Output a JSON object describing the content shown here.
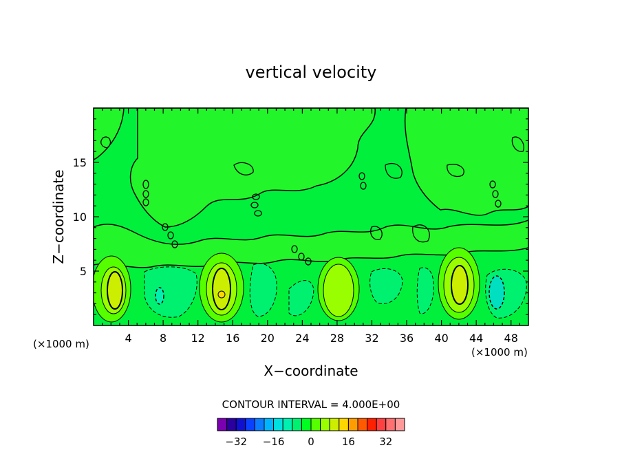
{
  "chart_data": {
    "type": "heatmap",
    "title": "vertical velocity",
    "xlabel": "X−coordinate",
    "ylabel": "Z−coordinate",
    "x_unit": "(×1000 m)",
    "z_unit": "(×1000 m)",
    "xlim": [
      0,
      50
    ],
    "ylim": [
      0,
      20
    ],
    "x_ticks": [
      4,
      8,
      12,
      16,
      20,
      24,
      28,
      32,
      36,
      40,
      44,
      48
    ],
    "y_ticks": [
      5,
      10,
      15
    ],
    "x_tick_labels": [
      "4",
      "8",
      "12",
      "16",
      "20",
      "24",
      "28",
      "32",
      "36",
      "40",
      "44",
      "48"
    ],
    "y_tick_labels": [
      "5",
      "10",
      "15"
    ],
    "contour_interval_text": "CONTOUR INTERVAL = 4.000E+00",
    "contour_interval": 4,
    "colorbar": {
      "colors": [
        "#7a00b0",
        "#2a00a0",
        "#1010d0",
        "#0a40ff",
        "#0a7cff",
        "#00b4ff",
        "#00e0e0",
        "#00f0b0",
        "#00f070",
        "#00ff20",
        "#55ff00",
        "#99ff00",
        "#ccee00",
        "#ffd700",
        "#ff9d00",
        "#ff5a00",
        "#ff2000",
        "#ff4040",
        "#ff7070",
        "#ff9a9a"
      ],
      "tick_values": [
        -32,
        -16,
        0,
        16,
        32
      ],
      "tick_labels": [
        "−32",
        "−16",
        "0",
        "16",
        "32"
      ],
      "min": -40,
      "max": 40
    },
    "cells": [
      {
        "x": 3,
        "z": 3.5,
        "w": 3.5
      },
      {
        "x": 8.5,
        "z": 3,
        "w": -4
      },
      {
        "x": 14.5,
        "z": 3.3,
        "w": 3.8
      },
      {
        "x": 20,
        "z": 3,
        "w": -2.4
      },
      {
        "x": 27.5,
        "z": 3.2,
        "w": 2.8
      },
      {
        "x": 34,
        "z": 3.5,
        "w": -2.4
      },
      {
        "x": 42,
        "z": 3.4,
        "w": 3.6
      },
      {
        "x": 46.5,
        "z": 3,
        "w": -3.8
      }
    ],
    "updraft_max_text_none": ""
  }
}
